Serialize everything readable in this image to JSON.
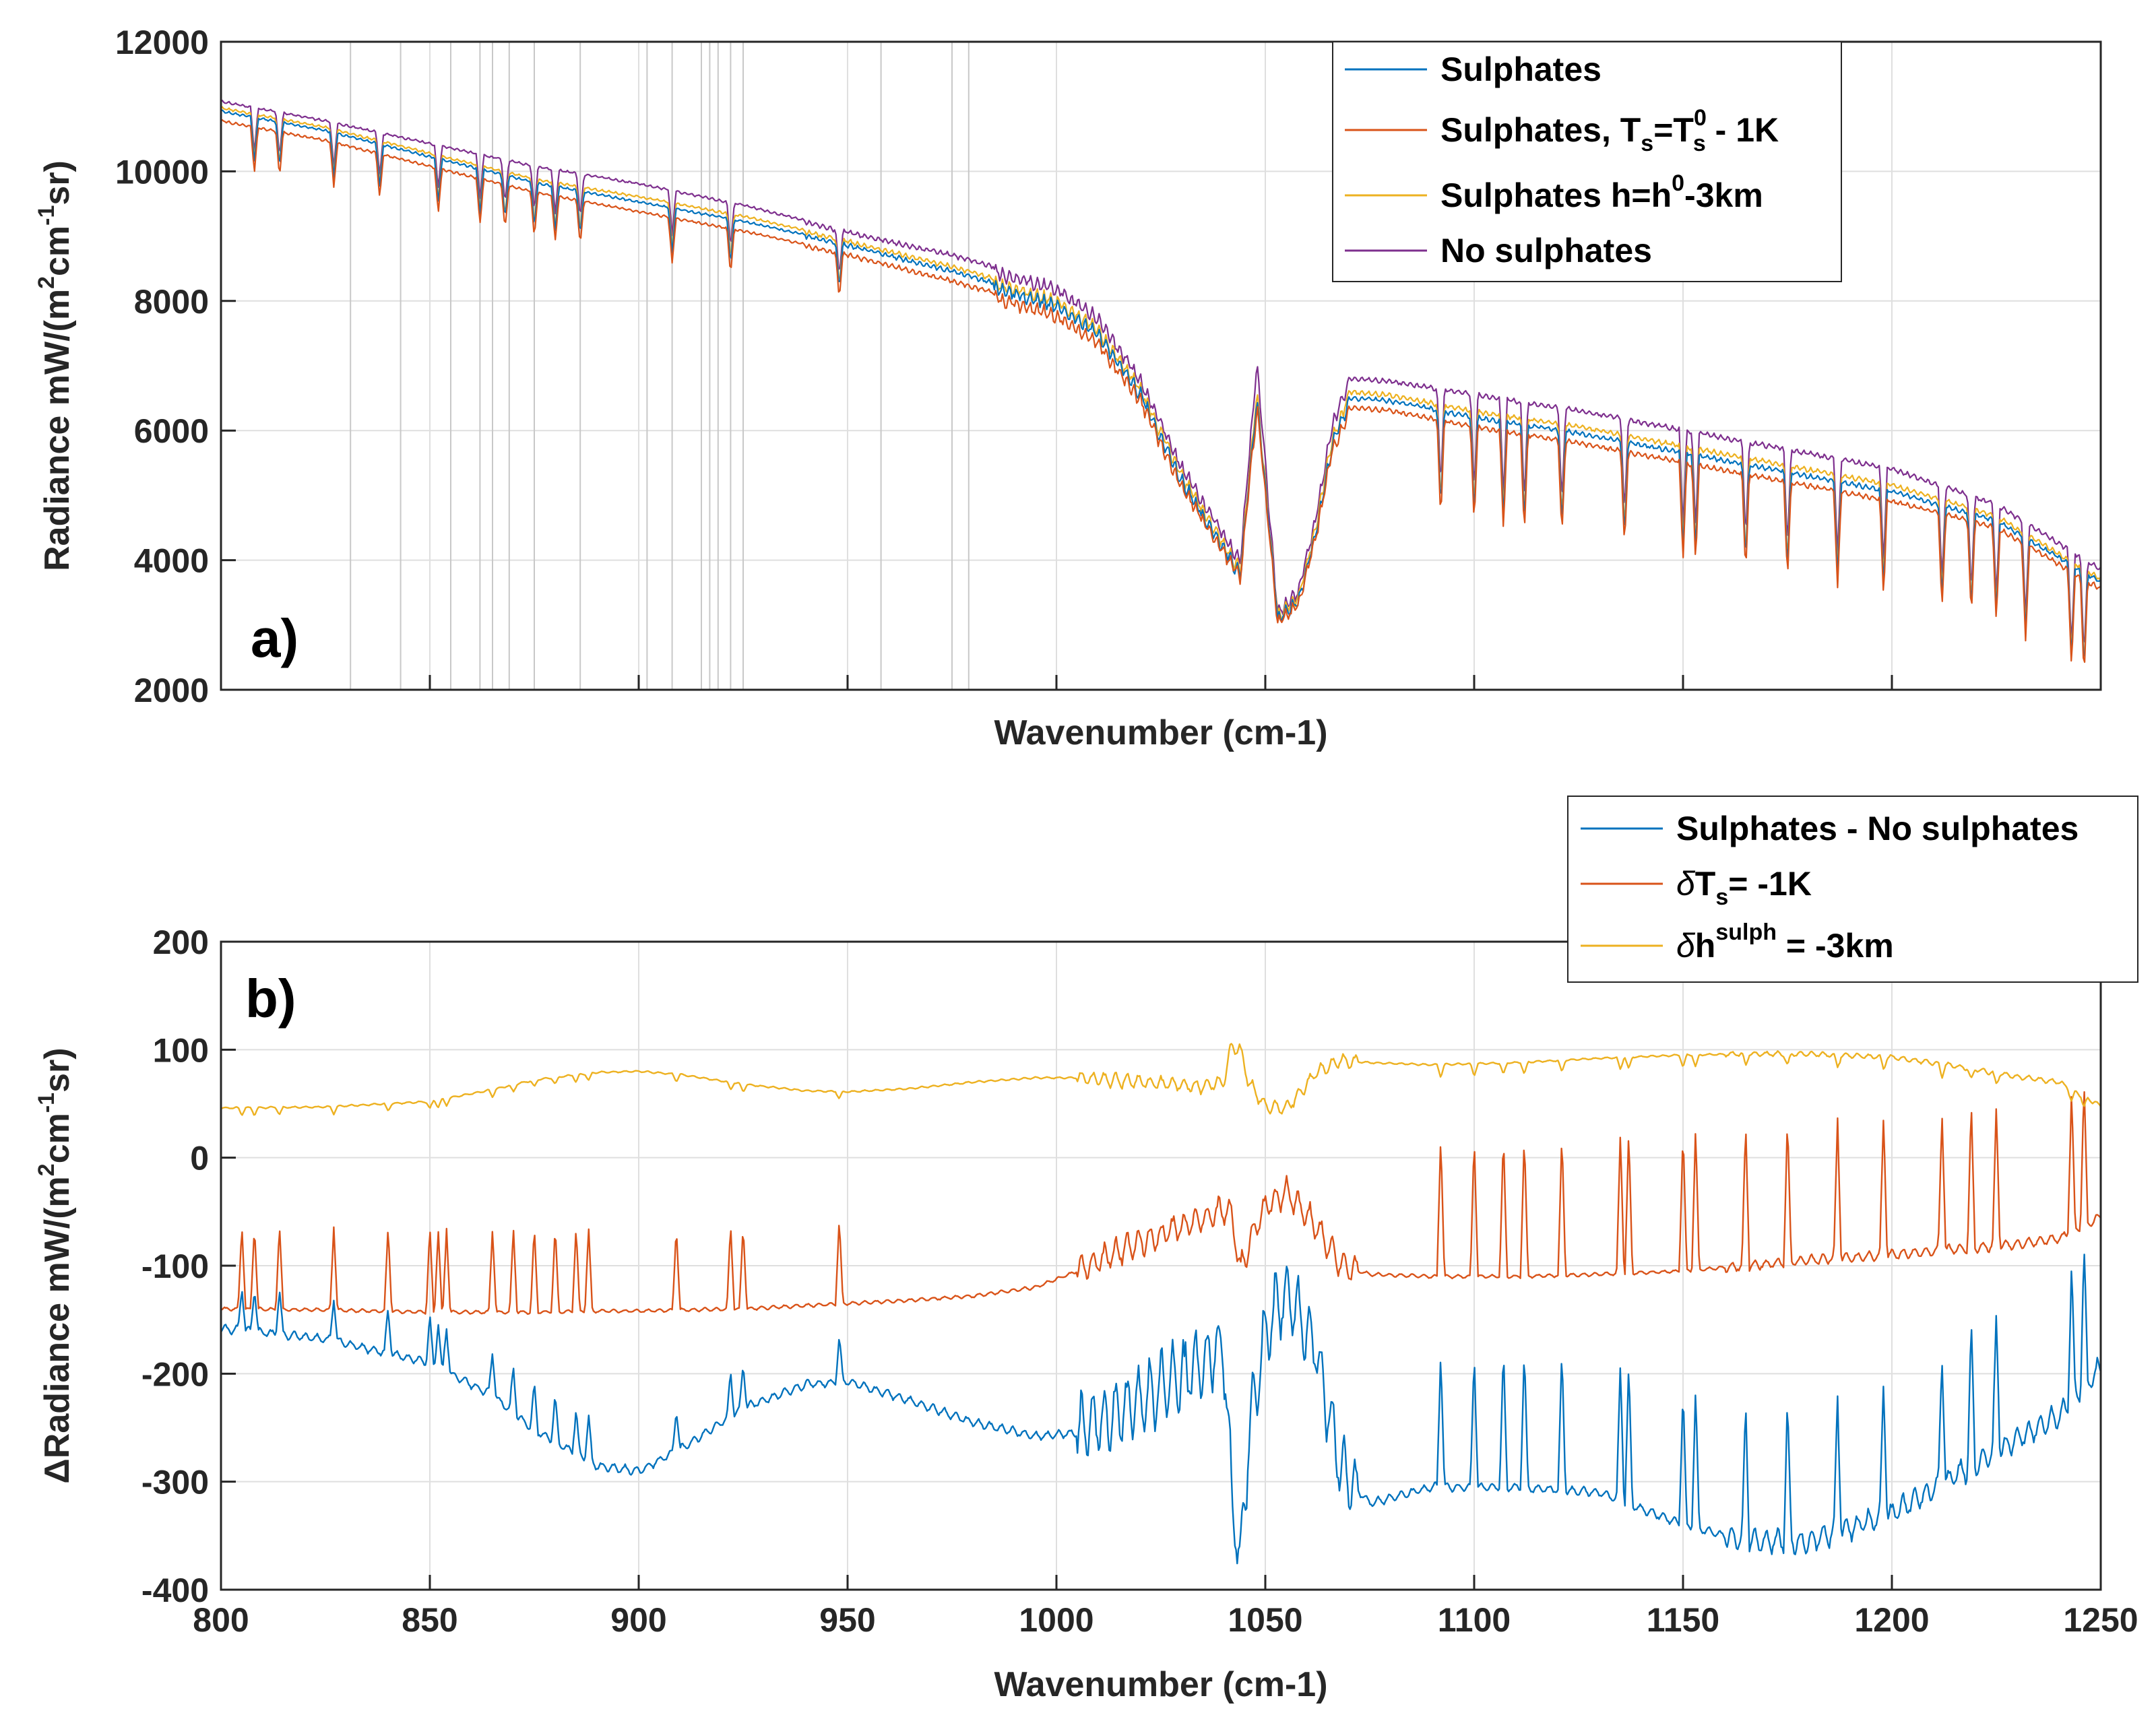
{
  "colors": {
    "blue": "#0072BD",
    "orange": "#D95319",
    "yellow": "#EDB120",
    "purple": "#7E2F8E",
    "axis": "#262626",
    "grid": "#DFDFDF"
  },
  "chart_data": [
    {
      "type": "line",
      "panel_tag": "a)",
      "xlabel": "Wavenumber (cm-1)",
      "ylabel": {
        "main": "Radiance mW/(m",
        "sup1": "2",
        "mid": "cm",
        "sup2": "-1",
        "end": "sr)"
      },
      "xlim": [
        800,
        1250
      ],
      "ylim": [
        2000,
        12000
      ],
      "yticks": [
        "2000",
        "4000",
        "6000",
        "8000",
        "10000",
        "12000"
      ],
      "xticks_labeled": false,
      "legend_location": "top-right",
      "legend": {
        "s1": "Sulphates",
        "s2": {
          "main": "Sulphates, T",
          "sub1": "s",
          "eq": "=T",
          "sup": "0",
          "sub2": "s",
          "end": " - 1K"
        },
        "s3": {
          "main": "Sulphates h=h",
          "sup": "0",
          "end": "-3km"
        },
        "s4": "No sulphates"
      },
      "x": [
        800,
        825,
        850,
        875,
        900,
        925,
        950,
        975,
        1000,
        1010,
        1020,
        1030,
        1040,
        1044,
        1048,
        1053,
        1058,
        1062,
        1066,
        1070,
        1080,
        1100,
        1125,
        1150,
        1175,
        1200,
        1225,
        1250
      ],
      "series": [
        {
          "name": "Sulphates",
          "color_key": "blue",
          "values": [
            10950,
            10650,
            10250,
            9850,
            9550,
            9250,
            8900,
            8500,
            8050,
            7600,
            6700,
            5350,
            4300,
            3900,
            6600,
            3200,
            3500,
            4500,
            5900,
            6550,
            6500,
            6250,
            6000,
            5700,
            5400,
            5100,
            4650,
            3700
          ]
        },
        {
          "name": "Sulphates, Ts=Ts0 - 1K",
          "color_key": "orange",
          "values": [
            10800,
            10500,
            10100,
            9700,
            9400,
            9100,
            8750,
            8350,
            7900,
            7450,
            6600,
            5250,
            4250,
            3850,
            6500,
            3150,
            3450,
            4450,
            5800,
            6400,
            6350,
            6100,
            5850,
            5550,
            5250,
            4950,
            4550,
            3600
          ]
        },
        {
          "name": "Sulphates h=h0-3km",
          "color_key": "yellow",
          "values": [
            11000,
            10700,
            10300,
            9900,
            9630,
            9330,
            8960,
            8570,
            8120,
            7670,
            6770,
            5420,
            4370,
            3970,
            6700,
            3250,
            3550,
            4600,
            5980,
            6640,
            6590,
            6340,
            6100,
            5800,
            5500,
            5200,
            4720,
            3750
          ]
        },
        {
          "name": "No sulphates",
          "color_key": "purple",
          "values": [
            11100,
            10800,
            10450,
            10100,
            9830,
            9500,
            9100,
            8750,
            8300,
            7850,
            6900,
            5550,
            4500,
            4100,
            7150,
            3300,
            3650,
            4750,
            6200,
            6850,
            6800,
            6600,
            6350,
            6050,
            5750,
            5450,
            4900,
            3900
          ]
        }
      ],
      "vertical_lines_x": [
        831,
        843,
        855,
        862,
        865,
        869,
        875,
        886,
        902,
        908,
        915,
        917,
        919,
        922,
        925,
        958,
        975,
        979
      ]
    },
    {
      "type": "line",
      "panel_tag": "b)",
      "xlabel": "Wavenumber (cm-1)",
      "ylabel": {
        "main": "ΔRadiance mW/(m",
        "sup1": "2",
        "mid": "cm",
        "sup2": "-1",
        "end": "sr)"
      },
      "xlim": [
        800,
        1250
      ],
      "ylim": [
        -400,
        200
      ],
      "xticks": [
        "800",
        "850",
        "900",
        "950",
        "1000",
        "1050",
        "1100",
        "1150",
        "1200",
        "1250"
      ],
      "yticks": [
        "-400",
        "-300",
        "-200",
        "-100",
        "0",
        "100",
        "200"
      ],
      "legend_location": "top-right (outside axes)",
      "legend": {
        "s1": "Sulphates - No sulphates",
        "s2": {
          "delta": "δ",
          "main": "T",
          "sub": "s",
          "end": "= -1K"
        },
        "s3": {
          "delta": "δ",
          "main": "h",
          "sup": "sulph",
          "end": " = -3km"
        }
      },
      "x": [
        800,
        825,
        850,
        865,
        875,
        890,
        900,
        910,
        925,
        940,
        950,
        965,
        980,
        995,
        1005,
        1020,
        1035,
        1040,
        1042,
        1044,
        1046,
        1050,
        1055,
        1062,
        1068,
        1075,
        1090,
        1110,
        1130,
        1150,
        1165,
        1180,
        1200,
        1215,
        1230,
        1240,
        1250
      ],
      "series": [
        {
          "name": "Sulphates - No sulphates",
          "color_key": "blue",
          "values": [
            -158,
            -168,
            -190,
            -220,
            -252,
            -285,
            -290,
            -270,
            -232,
            -210,
            -207,
            -225,
            -245,
            -258,
            -255,
            -225,
            -190,
            -170,
            -320,
            -375,
            -260,
            -160,
            -125,
            -175,
            -290,
            -320,
            -305,
            -305,
            -310,
            -340,
            -355,
            -355,
            -330,
            -295,
            -260,
            -240,
            -195
          ]
        },
        {
          "name": "δTs = -1K",
          "color_key": "orange",
          "values": [
            -140,
            -141,
            -143,
            -143,
            -143,
            -142,
            -142,
            -141,
            -140,
            -137,
            -135,
            -132,
            -128,
            -120,
            -105,
            -78,
            -57,
            -48,
            -55,
            -105,
            -80,
            -45,
            -32,
            -62,
            -100,
            -108,
            -110,
            -110,
            -108,
            -105,
            -100,
            -95,
            -90,
            -85,
            -80,
            -75,
            -55
          ]
        },
        {
          "name": "δh_sulph = -3km",
          "color_key": "yellow",
          "values": [
            46,
            47,
            52,
            63,
            72,
            79,
            80,
            77,
            68,
            62,
            61,
            64,
            70,
            74,
            74,
            70,
            66,
            70,
            104,
            100,
            70,
            48,
            45,
            78,
            90,
            88,
            86,
            88,
            92,
            95,
            96,
            96,
            93,
            85,
            75,
            70,
            48
          ]
        }
      ],
      "spike_positions_x": [
        805,
        808,
        814,
        827,
        840,
        850,
        852,
        854,
        865,
        870,
        875,
        880,
        885,
        888,
        909,
        922,
        925,
        948,
        1092,
        1100,
        1107,
        1112,
        1121,
        1135,
        1137,
        1150,
        1153,
        1165,
        1175,
        1187,
        1198,
        1212,
        1219,
        1225,
        1243,
        1246
      ]
    }
  ]
}
